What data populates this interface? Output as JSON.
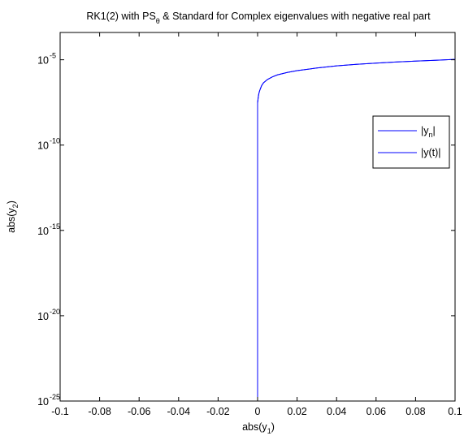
{
  "chart_data": {
    "type": "line",
    "title": "RK1(2) with PS",
    "title_sub": "θ",
    "title_rest": " & Standard for Complex eigenvalues with negative real part",
    "xlabel": "abs(y",
    "xlabel_sub": "1",
    "xlabel_end": ")",
    "ylabel": "abs(y",
    "ylabel_sub": "2",
    "ylabel_end": ")",
    "xlim": [
      -0.1,
      0.1
    ],
    "ylim_log10": [
      -25,
      -3.4
    ],
    "yscale": "log",
    "grid": false,
    "legend_position": "top-right",
    "x_ticks": [
      "-0.1",
      "-0.08",
      "-0.06",
      "-0.04",
      "-0.02",
      "0",
      "0.02",
      "0.04",
      "0.06",
      "0.08",
      "0.1"
    ],
    "y_tick_base": "10",
    "y_tick_exponents": [
      "-5",
      "-10",
      "-15",
      "-20",
      "-25"
    ],
    "series": [
      {
        "name": "|y",
        "name_sub": "n",
        "name_end": "|",
        "color": "#0000ff",
        "x": [
          0,
          0,
          0,
          0,
          0.0003,
          0.0006,
          0.001,
          0.002,
          0.003,
          0.005,
          0.0075,
          0.01,
          0.015,
          0.02,
          0.03,
          0.04,
          0.05,
          0.06,
          0.07,
          0.08,
          0.09,
          0.1
        ],
        "y": [
          1e-25,
          1e-15,
          1e-09,
          3e-08,
          6e-08,
          1e-07,
          1.5e-07,
          3e-07,
          4.5e-07,
          7e-07,
          1e-06,
          1.3e-06,
          1.8e-06,
          2.3e-06,
          3.3e-06,
          4.4e-06,
          5.4e-06,
          6.4e-06,
          7.4e-06,
          8.4e-06,
          9.3e-06,
          1.05e-05
        ]
      },
      {
        "name": "|y(t)|",
        "color": "#0000ff",
        "x": [
          0,
          0,
          0,
          0,
          0.0003,
          0.0006,
          0.001,
          0.002,
          0.003,
          0.005,
          0.0075,
          0.01,
          0.015,
          0.02,
          0.03,
          0.04,
          0.05,
          0.06,
          0.07,
          0.08,
          0.09,
          0.1
        ],
        "y": [
          1e-25,
          1e-15,
          1e-09,
          3e-08,
          6e-08,
          1e-07,
          1.5e-07,
          3e-07,
          4.5e-07,
          7e-07,
          1e-06,
          1.3e-06,
          1.8e-06,
          2.3e-06,
          3.3e-06,
          4.4e-06,
          5.4e-06,
          6.4e-06,
          7.4e-06,
          8.4e-06,
          9.3e-06,
          1.05e-05
        ]
      }
    ]
  }
}
